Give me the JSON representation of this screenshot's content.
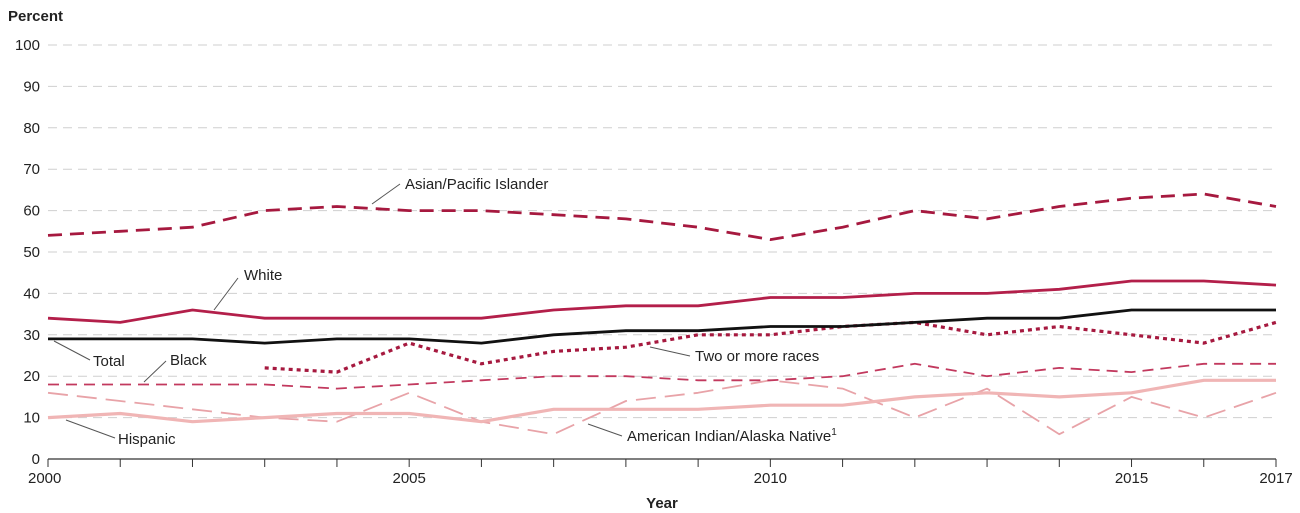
{
  "chart_data": {
    "type": "line",
    "ylabel": "Percent",
    "xlabel": "Year",
    "xlim": [
      2000,
      2017
    ],
    "ylim": [
      0,
      100
    ],
    "yticks": [
      0,
      10,
      20,
      30,
      40,
      50,
      60,
      70,
      80,
      90,
      100
    ],
    "xticks": [
      2000,
      2005,
      2010,
      2015,
      2017
    ],
    "grid": true,
    "legend": "inline labels",
    "series": [
      {
        "name": "Asian/Pacific Islander",
        "color": "#a6193f",
        "style": "dashed",
        "x": [
          2000,
          2001,
          2002,
          2003,
          2004,
          2005,
          2006,
          2007,
          2008,
          2009,
          2010,
          2011,
          2012,
          2013,
          2014,
          2015,
          2016,
          2017
        ],
        "values": [
          54,
          55,
          56,
          60,
          61,
          60,
          60,
          59,
          58,
          56,
          53,
          56,
          60,
          58,
          61,
          63,
          64,
          61
        ]
      },
      {
        "name": "White",
        "color": "#b31f4a",
        "style": "solid",
        "x": [
          2000,
          2001,
          2002,
          2003,
          2004,
          2005,
          2006,
          2007,
          2008,
          2009,
          2010,
          2011,
          2012,
          2013,
          2014,
          2015,
          2016,
          2017
        ],
        "values": [
          34,
          33,
          36,
          34,
          34,
          34,
          34,
          36,
          37,
          37,
          39,
          39,
          40,
          40,
          41,
          43,
          43,
          42
        ]
      },
      {
        "name": "Total",
        "color": "#111111",
        "style": "solid",
        "x": [
          2000,
          2001,
          2002,
          2003,
          2004,
          2005,
          2006,
          2007,
          2008,
          2009,
          2010,
          2011,
          2012,
          2013,
          2014,
          2015,
          2016,
          2017
        ],
        "values": [
          29,
          29,
          29,
          28,
          29,
          29,
          28,
          30,
          31,
          31,
          32,
          32,
          33,
          34,
          34,
          36,
          36,
          36
        ]
      },
      {
        "name": "Two or more races",
        "color": "#a6193f",
        "style": "dotted",
        "x": [
          2003,
          2004,
          2005,
          2006,
          2007,
          2008,
          2009,
          2010,
          2011,
          2012,
          2013,
          2014,
          2015,
          2016,
          2017
        ],
        "values": [
          22,
          21,
          28,
          23,
          26,
          27,
          30,
          30,
          32,
          33,
          30,
          32,
          30,
          28,
          33
        ]
      },
      {
        "name": "Black",
        "color": "#c2395e",
        "style": "dashed-thin",
        "x": [
          2000,
          2001,
          2002,
          2003,
          2004,
          2005,
          2006,
          2007,
          2008,
          2009,
          2010,
          2011,
          2012,
          2013,
          2014,
          2015,
          2016,
          2017
        ],
        "values": [
          18,
          18,
          18,
          18,
          17,
          18,
          19,
          20,
          20,
          19,
          19,
          20,
          23,
          20,
          22,
          21,
          23,
          23
        ]
      },
      {
        "name": "American Indian/Alaska Native",
        "label_suffix": "1",
        "color": "#e8a3a8",
        "style": "long-dash",
        "x": [
          2000,
          2001,
          2002,
          2003,
          2004,
          2005,
          2006,
          2007,
          2008,
          2009,
          2010,
          2011,
          2012,
          2013,
          2014,
          2015,
          2016,
          2017
        ],
        "values": [
          16,
          14,
          12,
          10,
          9,
          16,
          9,
          6,
          14,
          16,
          19,
          17,
          10,
          17,
          6,
          15,
          10,
          16
        ]
      },
      {
        "name": "Hispanic",
        "color": "#f0b5b5",
        "style": "solid-thick",
        "x": [
          2000,
          2001,
          2002,
          2003,
          2004,
          2005,
          2006,
          2007,
          2008,
          2009,
          2010,
          2011,
          2012,
          2013,
          2014,
          2015,
          2016,
          2017
        ],
        "values": [
          10,
          11,
          9,
          10,
          11,
          11,
          9,
          12,
          12,
          12,
          13,
          13,
          15,
          16,
          15,
          16,
          19,
          19
        ]
      }
    ]
  }
}
